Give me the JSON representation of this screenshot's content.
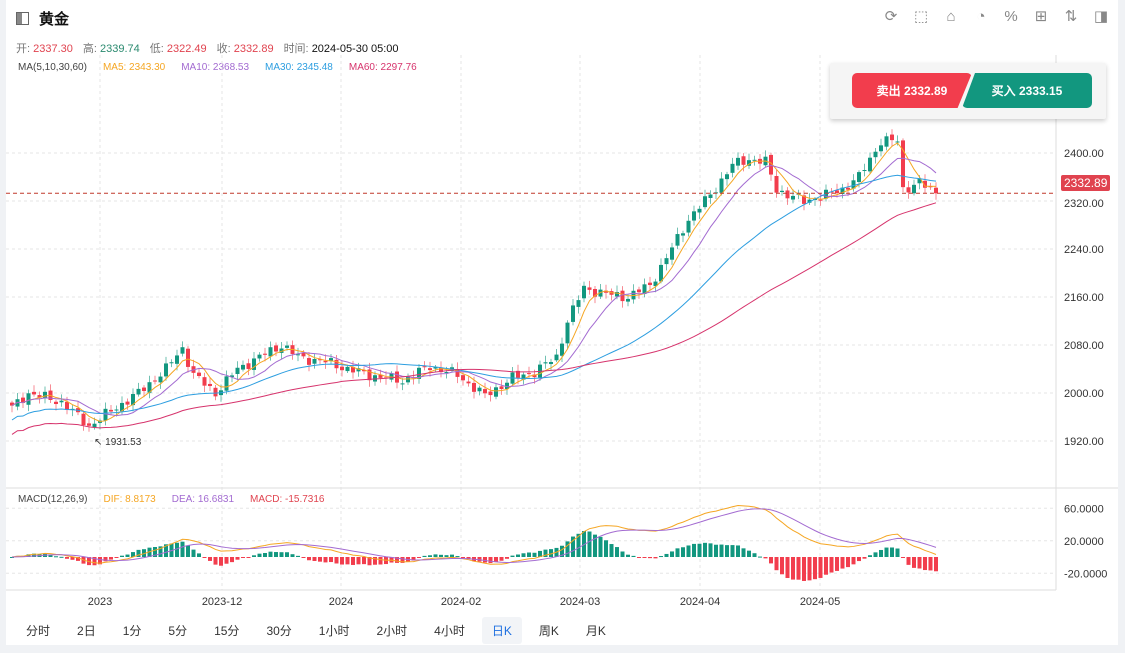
{
  "header": {
    "title": "黄金"
  },
  "toolbar": [
    "refresh-icon",
    "draw-icon",
    "indicator-icon",
    "pie-icon",
    "percent-icon",
    "layout-icon",
    "sort-icon",
    "panel-icon"
  ],
  "ohlc": {
    "open_label": "开:",
    "open": "2337.30",
    "high_label": "高:",
    "high": "2339.74",
    "low_label": "低:",
    "low": "2322.49",
    "close_label": "收:",
    "close": "2332.89",
    "time_label": "时间:",
    "time": "2024-05-30 05:00"
  },
  "ma": {
    "label": "MA(5,10,30,60)",
    "ma5": "MA5: 2343.30",
    "ma10": "MA10: 2368.53",
    "ma30": "MA30: 2345.48",
    "ma60": "MA60: 2297.76"
  },
  "trade": {
    "sell": "卖出 2332.89",
    "buy": "买入 2333.15"
  },
  "price_axis": [
    "2400.00",
    "2320.00",
    "2240.00",
    "2160.00",
    "2080.00",
    "2000.00",
    "1920.00"
  ],
  "current_price": "2332.89",
  "low_marker": "1931.53",
  "macd": {
    "label": "MACD(12,26,9)",
    "dif": "DIF: 8.8173",
    "dea": "DEA: 16.6831",
    "macd": "MACD: -15.7316",
    "axis": [
      "60.0000",
      "20.0000",
      "-20.0000"
    ]
  },
  "date_axis": [
    "2023",
    "2023-12",
    "2024",
    "2024-02",
    "2024-03",
    "2024-04",
    "2024-05"
  ],
  "tabs": [
    "分时",
    "2日",
    "1分",
    "5分",
    "15分",
    "30分",
    "1小时",
    "2小时",
    "4小时",
    "日K",
    "周K",
    "月K"
  ],
  "active_tab": "日K",
  "colors": {
    "up": "#12977f",
    "down": "#f23d4d",
    "ma5": "#f5a623",
    "ma10": "#a36bd1",
    "ma30": "#2d9ee0",
    "ma60": "#d6336c"
  },
  "chart_data": {
    "type": "candlestick",
    "price_range": [
      1880,
      2480
    ],
    "keypoints": [
      [
        0,
        1975
      ],
      [
        3,
        2000
      ],
      [
        9,
        1985
      ],
      [
        14,
        1945
      ],
      [
        18,
        1970
      ],
      [
        23,
        2000
      ],
      [
        28,
        2040
      ],
      [
        31,
        2075
      ],
      [
        33,
        2030
      ],
      [
        37,
        2000
      ],
      [
        41,
        2040
      ],
      [
        45,
        2060
      ],
      [
        49,
        2080
      ],
      [
        52,
        2060
      ],
      [
        58,
        2050
      ],
      [
        61,
        2040
      ],
      [
        65,
        2030
      ],
      [
        71,
        2020
      ],
      [
        76,
        2045
      ],
      [
        81,
        2030
      ],
      [
        86,
        1995
      ],
      [
        91,
        2025
      ],
      [
        95,
        2035
      ],
      [
        99,
        2060
      ],
      [
        101,
        2120
      ],
      [
        104,
        2175
      ],
      [
        108,
        2165
      ],
      [
        112,
        2160
      ],
      [
        116,
        2180
      ],
      [
        119,
        2225
      ],
      [
        123,
        2290
      ],
      [
        127,
        2330
      ],
      [
        131,
        2380
      ],
      [
        134,
        2390
      ],
      [
        137,
        2385
      ],
      [
        139,
        2340
      ],
      [
        141,
        2330
      ],
      [
        144,
        2320
      ],
      [
        148,
        2330
      ],
      [
        151,
        2340
      ],
      [
        154,
        2360
      ],
      [
        158,
        2420
      ],
      [
        161,
        2420
      ],
      [
        162,
        2340
      ],
      [
        165,
        2350
      ],
      [
        168,
        2333
      ]
    ]
  }
}
